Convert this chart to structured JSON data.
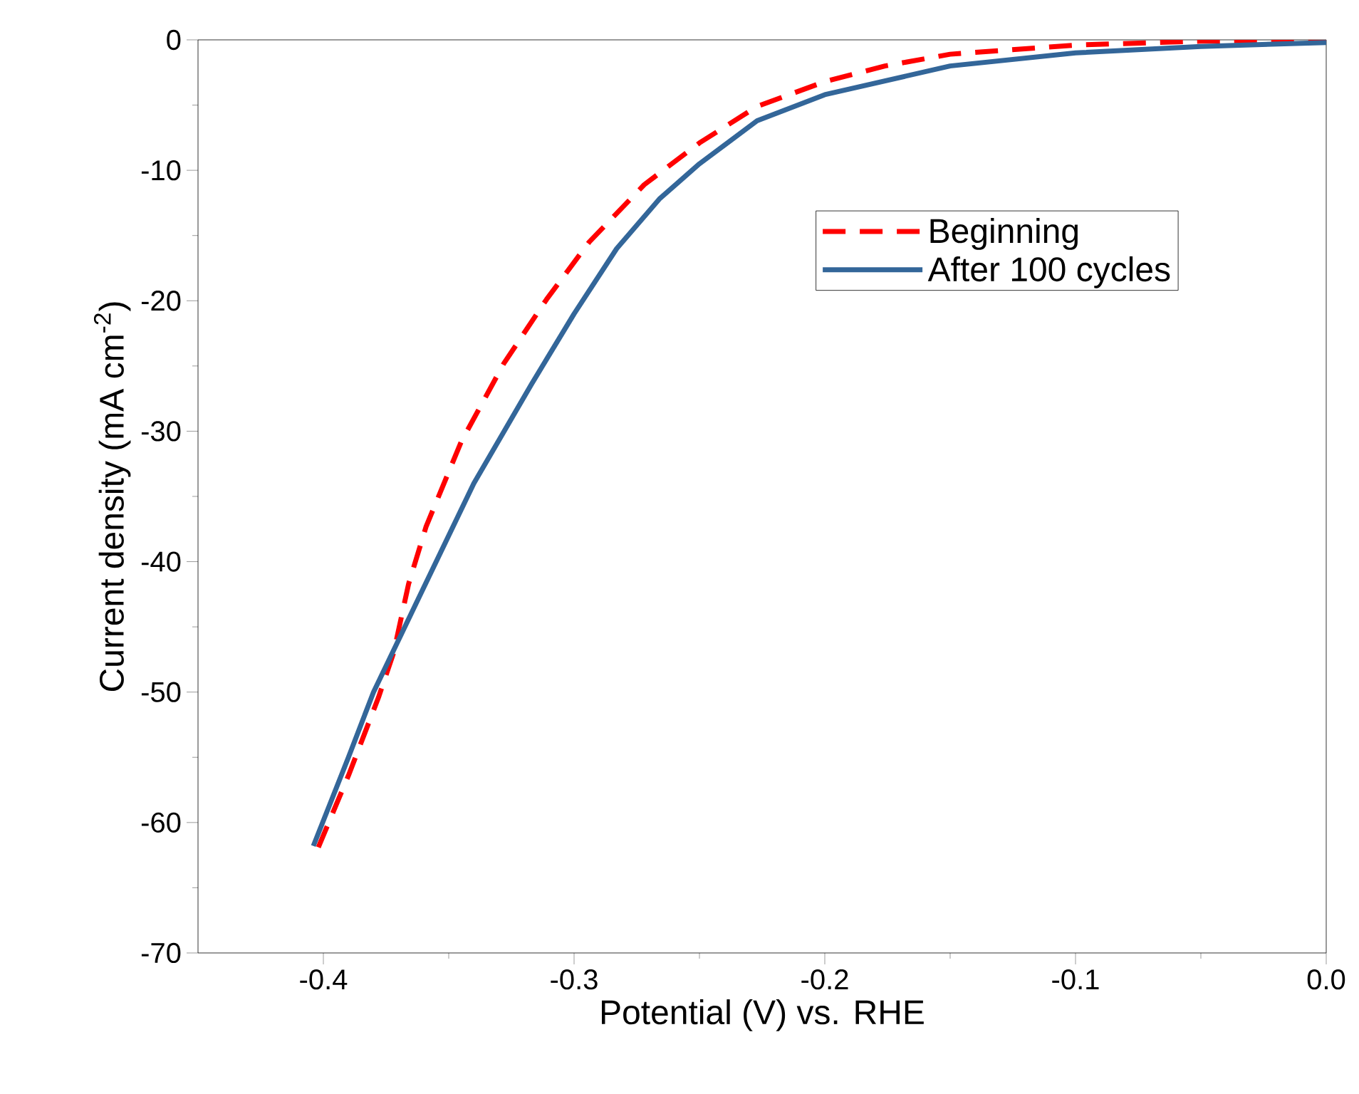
{
  "chart_data": {
    "type": "line",
    "xlabel": "Potential (V) vs. RHE",
    "ylabel": "Current density (mA cm$^{-2}$)",
    "xlim": [
      -0.45,
      0.0
    ],
    "ylim": [
      -70,
      0
    ],
    "xticks": [
      {
        "value": -0.4,
        "label": "-0.4"
      },
      {
        "value": -0.3,
        "label": "-0.3"
      },
      {
        "value": -0.2,
        "label": "-0.2"
      },
      {
        "value": -0.1,
        "label": "-0.1"
      },
      {
        "value": 0.0,
        "label": "0.0"
      }
    ],
    "yticks": [
      -70,
      -60,
      -50,
      -40,
      -30,
      -20,
      -10,
      0
    ],
    "legend": "top right",
    "grid": false,
    "series": [
      {
        "name": "Beginning",
        "color": "#ff0000",
        "line_style": "dashed",
        "x": [
          -0.402,
          -0.39,
          -0.378,
          -0.372,
          -0.366,
          -0.359,
          -0.345,
          -0.328,
          -0.311,
          -0.294,
          -0.272,
          -0.25,
          -0.227,
          -0.2,
          -0.176,
          -0.15,
          -0.1,
          -0.05,
          0.0
        ],
        "values": [
          -61.9,
          -56.4,
          -50.4,
          -47,
          -41.7,
          -37.3,
          -30.8,
          -24.8,
          -19.9,
          -15.5,
          -11.1,
          -7.9,
          -5.1,
          -3.2,
          -2.0,
          -1.1,
          -0.4,
          -0.1,
          0.0
        ]
      },
      {
        "name": "After 100 cycles",
        "color": "#336699",
        "line_style": "solid",
        "x": [
          -0.404,
          -0.39,
          -0.38,
          -0.362,
          -0.34,
          -0.317,
          -0.3,
          -0.283,
          -0.266,
          -0.25,
          -0.227,
          -0.2,
          -0.15,
          -0.1,
          -0.05,
          0.0
        ],
        "values": [
          -61.8,
          -55,
          -50,
          -42.8,
          -34,
          -26.4,
          -21,
          -16,
          -12.2,
          -9.5,
          -6.2,
          -4.2,
          -2.0,
          -1.0,
          -0.5,
          -0.2
        ]
      }
    ]
  }
}
